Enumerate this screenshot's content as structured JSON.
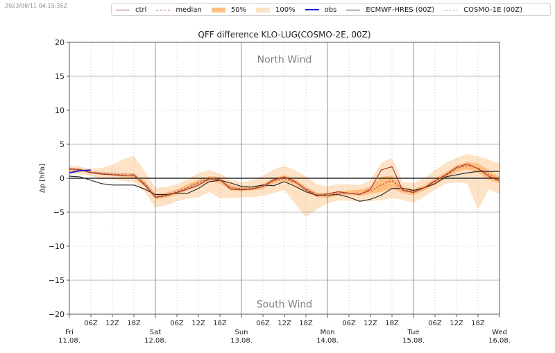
{
  "timestamp": "2023/08/11 04:15:35Z",
  "legend": [
    {
      "key": "ctrl",
      "label": "ctrl",
      "kind": "line",
      "color": "#b5504f",
      "dash": "none"
    },
    {
      "key": "median",
      "label": "median",
      "kind": "line",
      "color": "#b5504f",
      "dash": "3,2"
    },
    {
      "key": "p50",
      "label": "50%",
      "kind": "patch",
      "color": "#ffbf80"
    },
    {
      "key": "p100",
      "label": "100%",
      "kind": "patch",
      "color": "#fde2c6"
    },
    {
      "key": "obs",
      "label": "obs",
      "kind": "line",
      "color": "#1f1fd0",
      "dash": "none"
    },
    {
      "key": "ecmwf",
      "label": "ECMWF-HRES (00Z)",
      "kind": "line",
      "color": "#333333",
      "dash": "none"
    },
    {
      "key": "cosmo1e",
      "label": "COSMO-1E (00Z)",
      "kind": "line",
      "color": "#999999",
      "dash": "1,1"
    }
  ],
  "chart_data": {
    "type": "line",
    "title": "QFF difference KLO-LUG(COSMO-2E, 00Z)",
    "xlabel": "",
    "ylabel": "Δp [hPa]",
    "ylim": [
      -20,
      20
    ],
    "xlim_hours": [
      0,
      120
    ],
    "yticks": [
      20,
      15,
      10,
      5,
      0,
      -5,
      -10,
      -15,
      -20
    ],
    "ytick_labels": [
      "20",
      "15",
      "10",
      "5",
      "0",
      "−5",
      "−10",
      "−15",
      "−20"
    ],
    "hour_ticks": [
      {
        "h": 6,
        "label": "06Z"
      },
      {
        "h": 12,
        "label": "12Z"
      },
      {
        "h": 18,
        "label": "18Z"
      },
      {
        "h": 30,
        "label": "06Z"
      },
      {
        "h": 36,
        "label": "12Z"
      },
      {
        "h": 42,
        "label": "18Z"
      },
      {
        "h": 54,
        "label": "06Z"
      },
      {
        "h": 60,
        "label": "12Z"
      },
      {
        "h": 66,
        "label": "18Z"
      },
      {
        "h": 78,
        "label": "06Z"
      },
      {
        "h": 84,
        "label": "12Z"
      },
      {
        "h": 90,
        "label": "18Z"
      },
      {
        "h": 102,
        "label": "06Z"
      },
      {
        "h": 108,
        "label": "12Z"
      },
      {
        "h": 114,
        "label": "18Z"
      }
    ],
    "day_ticks": [
      {
        "h": 0,
        "day": "Fri",
        "date": "11.08."
      },
      {
        "h": 24,
        "day": "Sat",
        "date": "12.08."
      },
      {
        "h": 48,
        "day": "Sun",
        "date": "13.08."
      },
      {
        "h": 72,
        "day": "Mon",
        "date": "14.08."
      },
      {
        "h": 96,
        "day": "Tue",
        "date": "15.08."
      },
      {
        "h": 120,
        "day": "Wed",
        "date": "16.08."
      }
    ],
    "annotations": [
      {
        "text": "North Wind",
        "at_value": 17.5,
        "at_hour": 60
      },
      {
        "text": "South Wind",
        "at_value": -18.5,
        "at_hour": 60
      }
    ],
    "grid": true,
    "zero_line": 0,
    "x_hours": [
      0,
      3,
      6,
      9,
      12,
      15,
      18,
      21,
      24,
      27,
      30,
      33,
      36,
      39,
      42,
      45,
      48,
      51,
      54,
      57,
      60,
      63,
      66,
      69,
      72,
      75,
      78,
      81,
      84,
      87,
      90,
      93,
      96,
      99,
      102,
      105,
      108,
      111,
      114,
      117,
      120
    ],
    "series": [
      {
        "name": "median",
        "values": [
          1.3,
          1.2,
          0.9,
          0.7,
          0.6,
          0.5,
          0.4,
          -0.8,
          -2.7,
          -2.5,
          -2.0,
          -1.4,
          -0.7,
          0.0,
          -0.3,
          -1.4,
          -1.6,
          -1.5,
          -1.2,
          -0.4,
          0.0,
          -0.6,
          -1.6,
          -2.4,
          -2.5,
          -2.2,
          -2.2,
          -2.3,
          -1.9,
          -1.0,
          -0.3,
          -1.7,
          -2.0,
          -1.4,
          -0.5,
          0.4,
          1.4,
          1.9,
          1.5,
          0.6,
          -0.3
        ]
      },
      {
        "name": "ctrl",
        "values": [
          1.4,
          1.3,
          0.8,
          0.6,
          0.5,
          0.4,
          0.5,
          -1.0,
          -2.8,
          -2.6,
          -2.1,
          -1.6,
          -1.0,
          -0.1,
          -0.2,
          -1.6,
          -1.7,
          -1.6,
          -1.2,
          -0.2,
          0.2,
          -0.5,
          -1.7,
          -2.6,
          -2.3,
          -2.0,
          -2.2,
          -2.4,
          -1.6,
          1.2,
          1.7,
          -1.8,
          -2.1,
          -1.4,
          -0.4,
          0.5,
          1.6,
          2.1,
          1.4,
          0.3,
          -0.4
        ]
      },
      {
        "name": "obs",
        "values": [
          0.8,
          1.1,
          1.2
        ]
      },
      {
        "name": "ecmwf",
        "values": [
          0.3,
          0.2,
          -0.3,
          -0.8,
          -1.0,
          -1.0,
          -1.0,
          -1.6,
          -2.4,
          -2.4,
          -2.2,
          -2.2,
          -1.5,
          -0.5,
          -0.3,
          -0.7,
          -1.2,
          -1.3,
          -1.0,
          -1.1,
          -0.5,
          -1.2,
          -2.0,
          -2.5,
          -2.5,
          -2.4,
          -2.8,
          -3.4,
          -3.1,
          -2.5,
          -1.5,
          -1.5,
          -1.8,
          -1.4,
          -0.8,
          0.2,
          0.5,
          0.8,
          1.0,
          1.0,
          1.0
        ]
      },
      {
        "name": "cosmo1e",
        "values": [
          1.4,
          1.2,
          0.9,
          0.8,
          0.8,
          0.7,
          0.6,
          -0.6,
          -2.6,
          -2.4,
          -1.9,
          -1.3,
          -0.5,
          0.1,
          -0.2,
          -1.3,
          -1.5,
          -1.3,
          -1.1,
          -0.3,
          0.1,
          -0.5,
          -1.5,
          -2.3,
          -2.4,
          null,
          null,
          null,
          null,
          null,
          null,
          null,
          null,
          null,
          null,
          null,
          null,
          null,
          null,
          null,
          null
        ]
      },
      {
        "name": "50% upper",
        "values": [
          1.5,
          1.4,
          1.1,
          0.9,
          0.8,
          0.7,
          0.7,
          -0.4,
          -2.3,
          -2.1,
          -1.6,
          -0.9,
          -0.2,
          0.3,
          0.2,
          -1.0,
          -1.3,
          -1.2,
          -0.8,
          0.0,
          0.5,
          -0.2,
          -1.2,
          -2.1,
          -2.2,
          -1.9,
          -1.8,
          -1.7,
          -1.2,
          0.2,
          0.4,
          -1.3,
          -1.6,
          -1.0,
          0.0,
          0.9,
          1.9,
          2.4,
          2.2,
          1.2,
          0.2
        ]
      },
      {
        "name": "50% lower",
        "values": [
          1.0,
          1.0,
          0.7,
          0.5,
          0.4,
          0.2,
          0.0,
          -1.2,
          -3.1,
          -2.9,
          -2.4,
          -1.8,
          -1.2,
          -0.4,
          -0.8,
          -1.8,
          -1.9,
          -1.8,
          -1.6,
          -0.8,
          -0.4,
          -1.0,
          -2.0,
          -2.8,
          -2.9,
          -2.5,
          -2.5,
          -2.6,
          -2.3,
          -2.0,
          -1.5,
          -2.2,
          -2.5,
          -1.8,
          -1.0,
          0.0,
          0.9,
          1.3,
          0.8,
          -0.2,
          -0.8
        ]
      },
      {
        "name": "100% upper",
        "values": [
          1.9,
          1.7,
          1.4,
          1.5,
          2.0,
          2.8,
          3.3,
          1.0,
          -1.4,
          -1.3,
          -0.9,
          -0.2,
          0.8,
          1.2,
          0.7,
          -0.2,
          -0.6,
          -0.3,
          0.4,
          1.3,
          1.8,
          1.2,
          0.3,
          -0.9,
          -1.2,
          -0.9,
          -0.9,
          -1.0,
          -0.3,
          2.3,
          3.0,
          -0.6,
          -0.7,
          0.0,
          1.2,
          2.2,
          3.0,
          3.6,
          3.2,
          2.7,
          2.2
        ]
      },
      {
        "name": "100% lower",
        "values": [
          0.7,
          0.6,
          0.3,
          -0.1,
          -0.2,
          -0.4,
          -0.6,
          -2.0,
          -4.3,
          -4.0,
          -3.4,
          -3.0,
          -2.8,
          -2.0,
          -3.0,
          -2.9,
          -2.8,
          -2.8,
          -2.6,
          -2.2,
          -1.7,
          -3.8,
          -5.7,
          -4.6,
          -3.7,
          -3.3,
          -3.3,
          -3.4,
          -3.4,
          -3.2,
          -2.9,
          -3.2,
          -3.6,
          -2.7,
          -1.7,
          -0.8,
          -0.6,
          -0.8,
          -4.6,
          -1.6,
          -2.4
        ]
      }
    ]
  }
}
